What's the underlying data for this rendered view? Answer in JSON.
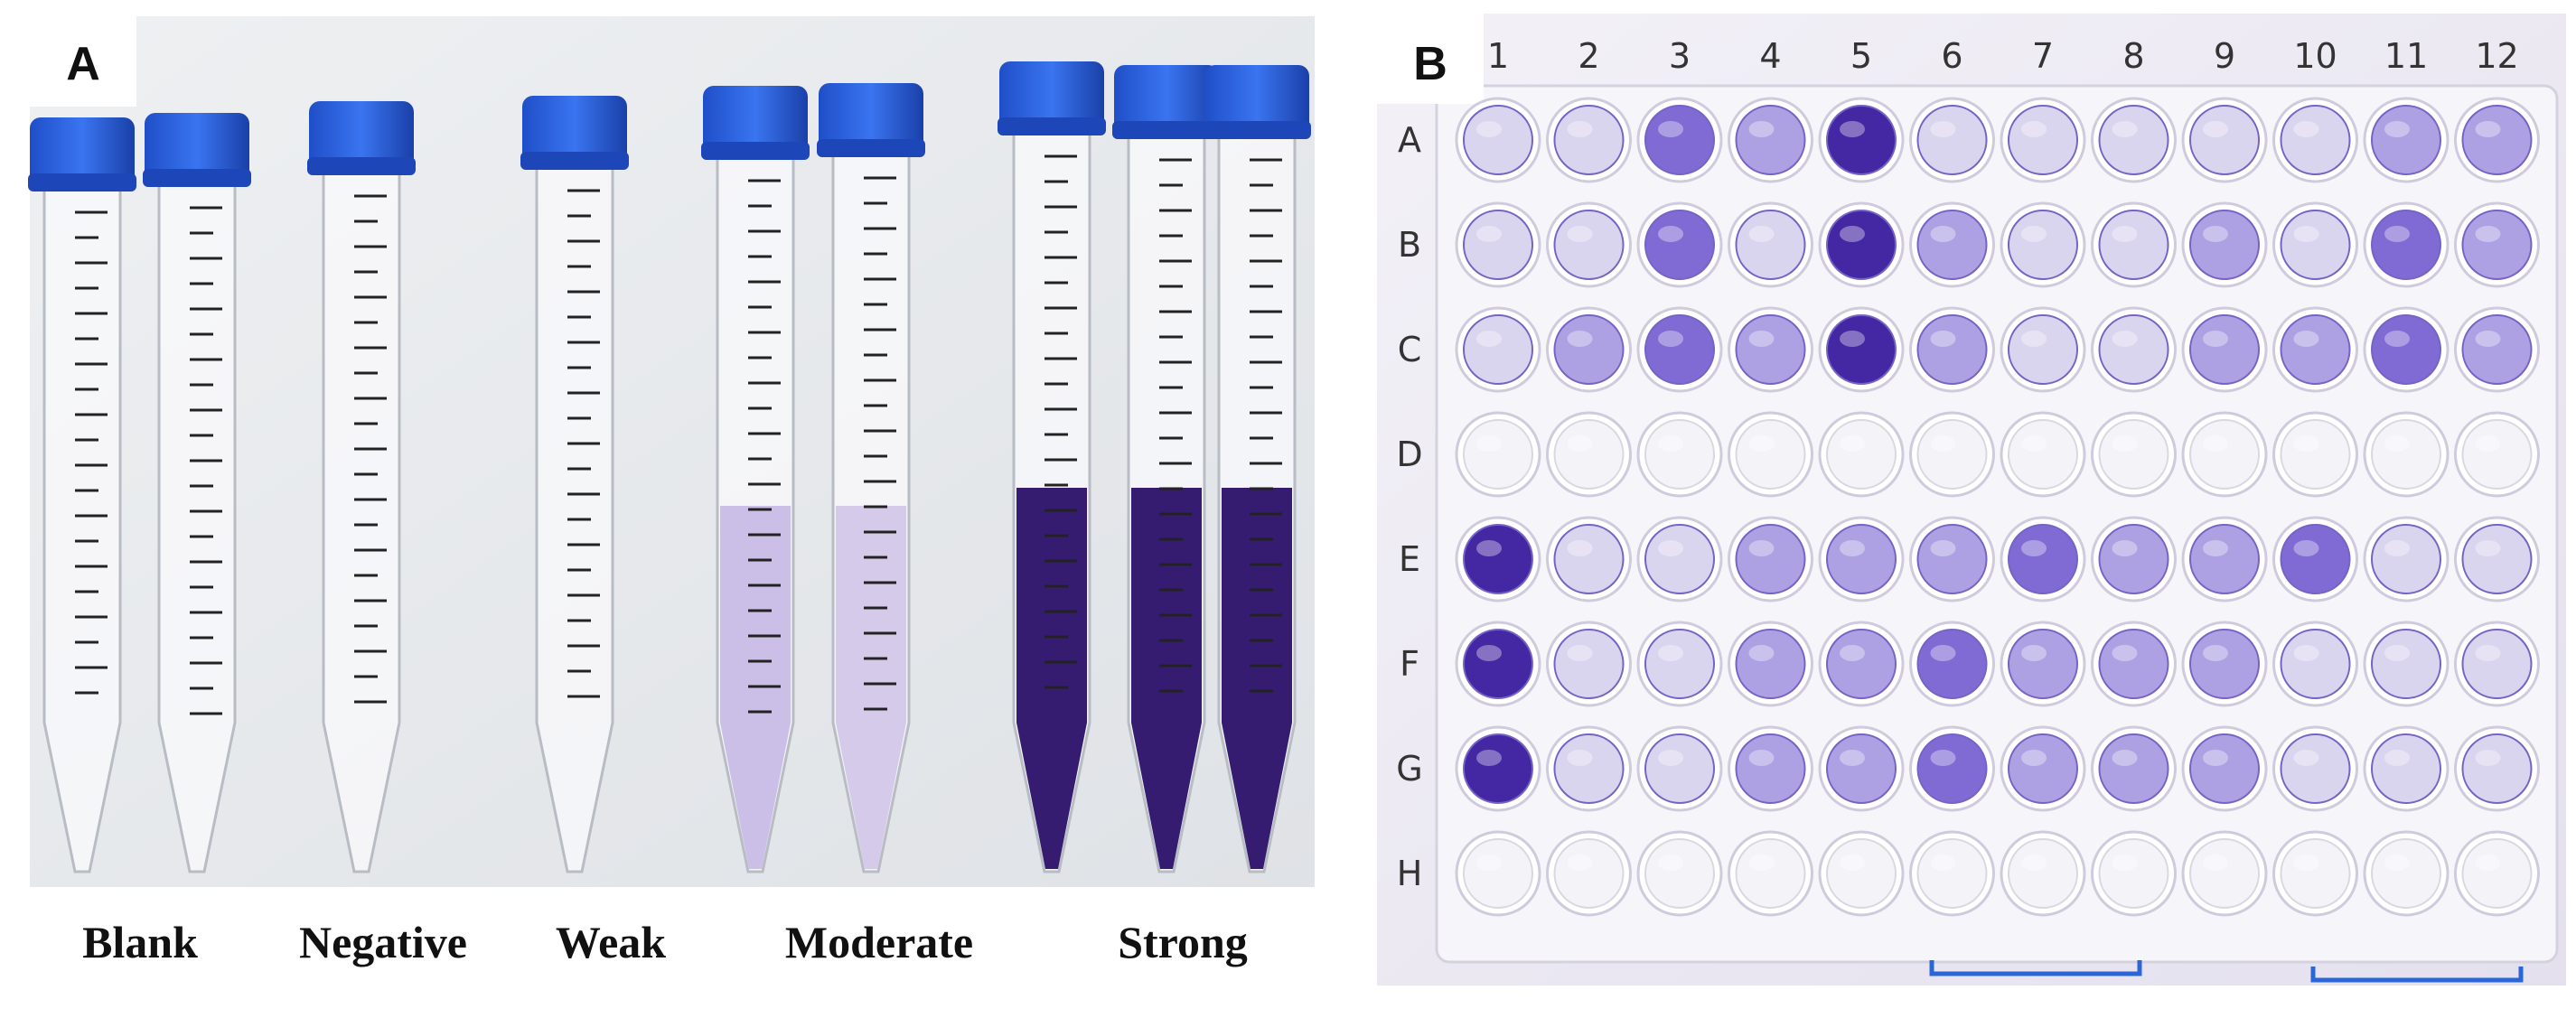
{
  "panel_a": {
    "label": "A",
    "tube_labels": [
      "Blank",
      "Negative",
      "Weak",
      "Moderate",
      "Strong"
    ]
  },
  "panel_b": {
    "label": "B",
    "columns": [
      "1",
      "2",
      "3",
      "4",
      "5",
      "6",
      "7",
      "8",
      "9",
      "10",
      "11",
      "12"
    ],
    "rows": [
      "A",
      "B",
      "C",
      "D",
      "E",
      "F",
      "G",
      "H"
    ]
  }
}
